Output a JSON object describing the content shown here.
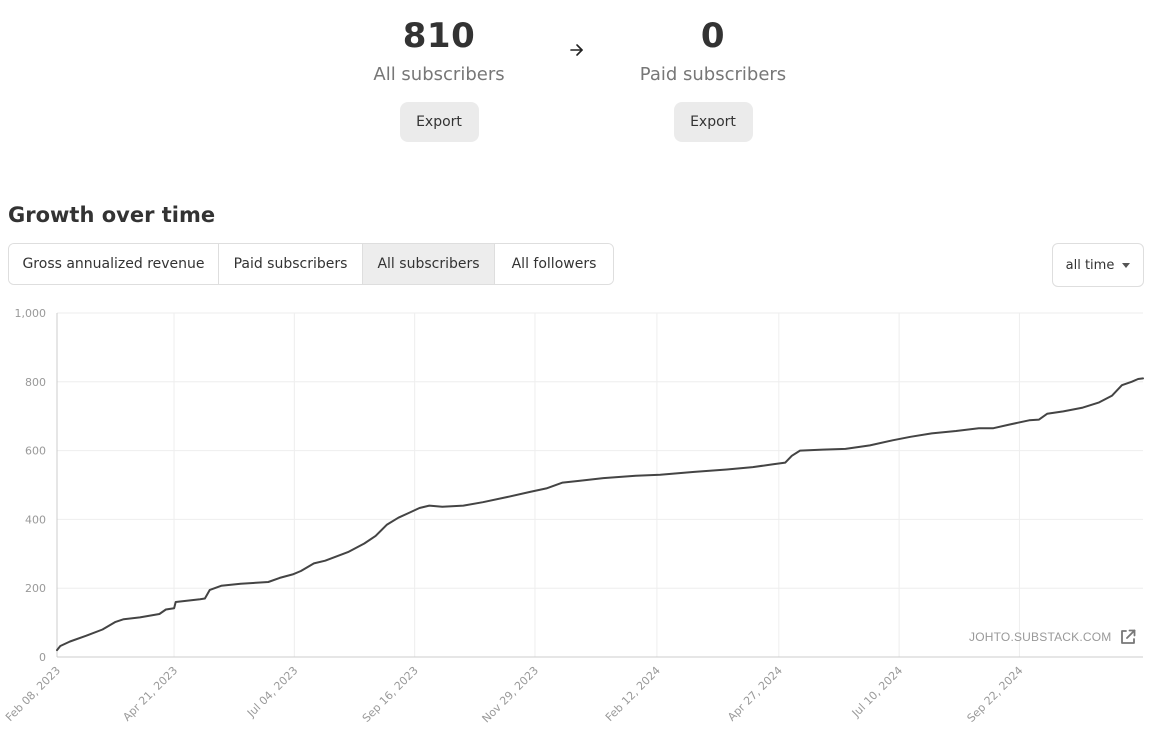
{
  "stats": {
    "all": {
      "count": "810",
      "label": "All subscribers",
      "export_label": "Export"
    },
    "paid": {
      "count": "0",
      "label": "Paid subscribers",
      "export_label": "Export"
    },
    "arrow_icon": "arrow-right-icon"
  },
  "growth": {
    "title": "Growth over time",
    "tabs": [
      {
        "label": "Gross annualized revenue",
        "active": false
      },
      {
        "label": "Paid subscribers",
        "active": false
      },
      {
        "label": "All subscribers",
        "active": true
      },
      {
        "label": "All followers",
        "active": false
      }
    ],
    "range": {
      "selected": "all time"
    },
    "watermark": "JOHTO.SUBSTACK.COM",
    "external_icon": "external-link-icon"
  },
  "colors": {
    "line": "#444444",
    "grid": "#eeeeee",
    "axis": "#cccccc",
    "tick_text": "#999999",
    "active_tab": "#ededed",
    "button_bg": "#ebebeb"
  },
  "chart_data": {
    "type": "line",
    "title": "",
    "xlabel": "",
    "ylabel": "",
    "x_axis": "date",
    "x_range": [
      "2023-02-08",
      "2024-12-07"
    ],
    "ylim": [
      0,
      1000
    ],
    "y_ticks": [
      0,
      200,
      400,
      600,
      800,
      1000
    ],
    "y_tick_labels": [
      "0",
      "200",
      "400",
      "600",
      "800",
      "1,000"
    ],
    "x_ticks": [
      "2023-02-08",
      "2023-04-21",
      "2023-07-04",
      "2023-09-16",
      "2023-11-29",
      "2024-02-12",
      "2024-04-27",
      "2024-07-10",
      "2024-09-22"
    ],
    "x_tick_labels": [
      "Feb 08, 2023",
      "Apr 21, 2023",
      "Jul 04, 2023",
      "Sep 16, 2023",
      "Nov 29, 2023",
      "Feb 12, 2024",
      "Apr 27, 2024",
      "Jul 10, 2024",
      "Sep 22, 2024"
    ],
    "grid": true,
    "series": [
      {
        "points": [
          [
            "2023-02-08",
            20
          ],
          [
            "2023-02-10",
            32
          ],
          [
            "2023-02-16",
            45
          ],
          [
            "2023-02-26",
            62
          ],
          [
            "2023-03-08",
            80
          ],
          [
            "2023-03-16",
            102
          ],
          [
            "2023-03-21",
            110
          ],
          [
            "2023-03-31",
            115
          ],
          [
            "2023-04-12",
            125
          ],
          [
            "2023-04-16",
            138
          ],
          [
            "2023-04-21",
            142
          ],
          [
            "2023-04-22",
            160
          ],
          [
            "2023-05-07",
            168
          ],
          [
            "2023-05-10",
            170
          ],
          [
            "2023-05-13",
            195
          ],
          [
            "2023-05-20",
            207
          ],
          [
            "2023-06-01",
            213
          ],
          [
            "2023-06-18",
            218
          ],
          [
            "2023-06-25",
            230
          ],
          [
            "2023-07-03",
            240
          ],
          [
            "2023-07-08",
            250
          ],
          [
            "2023-07-16",
            272
          ],
          [
            "2023-07-23",
            280
          ],
          [
            "2023-08-06",
            305
          ],
          [
            "2023-08-16",
            330
          ],
          [
            "2023-08-23",
            352
          ],
          [
            "2023-08-30",
            385
          ],
          [
            "2023-09-06",
            405
          ],
          [
            "2023-09-13",
            420
          ],
          [
            "2023-09-19",
            433
          ],
          [
            "2023-09-25",
            440
          ],
          [
            "2023-10-03",
            437
          ],
          [
            "2023-10-16",
            440
          ],
          [
            "2023-10-28",
            450
          ],
          [
            "2023-11-12",
            465
          ],
          [
            "2023-11-26",
            480
          ],
          [
            "2023-12-06",
            490
          ],
          [
            "2023-12-16",
            507
          ],
          [
            "2023-12-26",
            512
          ],
          [
            "2024-01-10",
            520
          ],
          [
            "2024-01-30",
            527
          ],
          [
            "2024-02-14",
            530
          ],
          [
            "2024-03-06",
            538
          ],
          [
            "2024-03-26",
            545
          ],
          [
            "2024-04-11",
            552
          ],
          [
            "2024-04-23",
            560
          ],
          [
            "2024-05-01",
            565
          ],
          [
            "2024-05-05",
            585
          ],
          [
            "2024-05-10",
            600
          ],
          [
            "2024-05-24",
            603
          ],
          [
            "2024-06-07",
            605
          ],
          [
            "2024-06-22",
            615
          ],
          [
            "2024-07-06",
            630
          ],
          [
            "2024-07-17",
            640
          ],
          [
            "2024-07-30",
            650
          ],
          [
            "2024-08-14",
            657
          ],
          [
            "2024-08-28",
            665
          ],
          [
            "2024-09-06",
            665
          ],
          [
            "2024-09-16",
            676
          ],
          [
            "2024-09-28",
            688
          ],
          [
            "2024-10-04",
            690
          ],
          [
            "2024-10-09",
            707
          ],
          [
            "2024-10-19",
            714
          ],
          [
            "2024-10-31",
            725
          ],
          [
            "2024-11-10",
            740
          ],
          [
            "2024-11-18",
            760
          ],
          [
            "2024-11-24",
            790
          ],
          [
            "2024-11-30",
            800
          ],
          [
            "2024-12-04",
            808
          ],
          [
            "2024-12-07",
            810
          ]
        ]
      }
    ]
  }
}
